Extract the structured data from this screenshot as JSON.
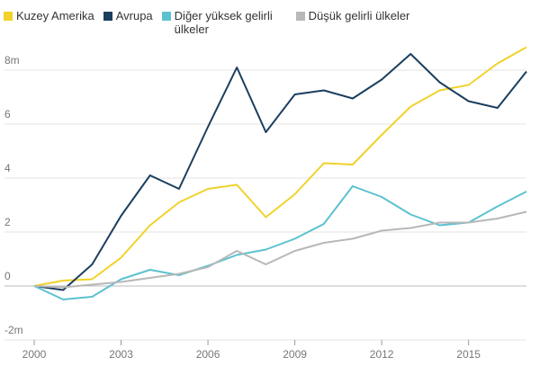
{
  "chart_data": {
    "type": "line",
    "x": [
      2000,
      2001,
      2002,
      2003,
      2004,
      2005,
      2006,
      2007,
      2008,
      2009,
      2010,
      2011,
      2012,
      2013,
      2014,
      2015,
      2016,
      2017
    ],
    "series": [
      {
        "name": "Kuzey Amerika",
        "color": "#f0d22a",
        "values": [
          0,
          0.2,
          0.25,
          1.05,
          2.25,
          3.1,
          3.6,
          3.75,
          2.55,
          3.4,
          4.55,
          4.5,
          5.6,
          6.65,
          7.25,
          7.45,
          8.25,
          8.85
        ]
      },
      {
        "name": "Avrupa",
        "color": "#1b3f5e",
        "values": [
          0,
          -0.15,
          0.8,
          2.6,
          4.1,
          3.6,
          5.9,
          8.1,
          5.7,
          7.1,
          7.25,
          6.95,
          7.65,
          8.6,
          7.55,
          6.85,
          6.6,
          7.95
        ]
      },
      {
        "name": "Diğer yüksek gelirli ülkeler",
        "color": "#5cc2cf",
        "values": [
          0,
          -0.5,
          -0.4,
          0.25,
          0.6,
          0.4,
          0.75,
          1.15,
          1.35,
          1.75,
          2.3,
          3.7,
          3.3,
          2.65,
          2.25,
          2.35,
          2.95,
          3.5
        ]
      },
      {
        "name": "Düşük gelirli ülkeler",
        "color": "#b8b8b8",
        "values": [
          0,
          -0.05,
          0.05,
          0.15,
          0.3,
          0.45,
          0.7,
          1.3,
          0.8,
          1.3,
          1.6,
          1.75,
          2.05,
          2.15,
          2.35,
          2.35,
          2.5,
          2.75
        ]
      }
    ],
    "xlim": [
      2000,
      2017
    ],
    "xticks": [
      2000,
      2003,
      2006,
      2009,
      2012,
      2015
    ],
    "ylim": [
      -2,
      9
    ],
    "yticks": [
      {
        "value": -2,
        "label": "-2m"
      },
      0,
      2,
      4,
      6,
      {
        "value": 8,
        "label": "8m"
      }
    ],
    "grid": true
  }
}
